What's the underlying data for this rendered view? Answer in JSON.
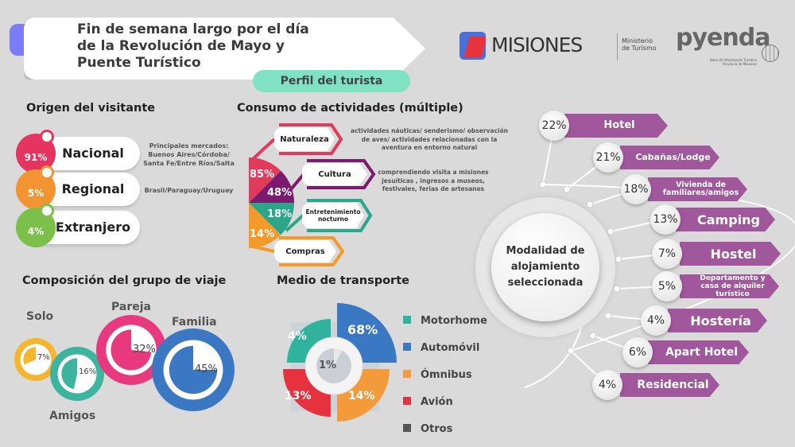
{
  "header": {
    "title_lines": [
      "Fin de semana largo por el día",
      "de la Revolución de Mayo y",
      "Puente Turístico"
    ],
    "subtitle": "Perfil del turista"
  },
  "logos": {
    "misiones": "MISIONES",
    "ministerio": "Ministerio de Turismo",
    "pyenda": "pyenda",
    "pyenda_sub": "Base de Información Turística Provincia de Misiones"
  },
  "origen": {
    "title": "Origen del visitante",
    "items": [
      {
        "pct": "91%",
        "label": "Nacional",
        "note": "Principales mercados: Buenos Aires/Córdoba/ Santa Fe/Entre Ríos/Salta",
        "color": "#e5345f"
      },
      {
        "pct": "5%",
        "label": "Regional",
        "note": "Brasil/Paraguay/Uruguay",
        "color": "#f39433"
      },
      {
        "pct": "4%",
        "label": "Extranjero",
        "note": "",
        "color": "#7cbf4a"
      }
    ]
  },
  "consumo": {
    "title": "Consumo de actividades (múltiple)",
    "items": [
      {
        "pct": "85%",
        "label": "Naturaleza",
        "color": "#e23a5a",
        "desc": "actividades náuticas/ senderismo/ observación de aves/ actividades relacionadas con la aventura en entorno natural"
      },
      {
        "pct": "48%",
        "label": "Cultura",
        "color": "#7b1a6e",
        "desc": "comprendiendo visita a misiones jesuíticas , ingresos a museos, festivales, ferias de artesanos"
      },
      {
        "pct": "18%",
        "label": "Entretenimiento nocturno",
        "color": "#2aa68a",
        "desc": ""
      },
      {
        "pct": "14%",
        "label": "Compras",
        "color": "#f39a2a",
        "desc": ""
      }
    ]
  },
  "alojamiento": {
    "center": "Modalidad de alojamiento seleccionada",
    "items": [
      {
        "pct": "22%",
        "label": "Hotel",
        "value": 22
      },
      {
        "pct": "21%",
        "label": "Cabañas/Lodge",
        "value": 21
      },
      {
        "pct": "18%",
        "label": "Vivienda de familiares/amigos",
        "value": 18
      },
      {
        "pct": "13%",
        "label": "Camping",
        "value": 13
      },
      {
        "pct": "7%",
        "label": "Hostel",
        "value": 7
      },
      {
        "pct": "5%",
        "label": "Departamento y casa de alquiler turístico",
        "value": 5
      },
      {
        "pct": "4%",
        "label": "Hostería",
        "value": 4
      },
      {
        "pct": "6%",
        "label": "Apart Hotel",
        "value": 6
      },
      {
        "pct": "4%",
        "label": "Residencial",
        "value": 4
      }
    ]
  },
  "grupo": {
    "title": "Composición del grupo de viaje",
    "items": [
      {
        "label": "Solo",
        "pct": "7%",
        "value": 7,
        "color": "#f6b52e"
      },
      {
        "label": "Amigos",
        "pct": "16%",
        "value": 16,
        "color": "#3db4a0"
      },
      {
        "label": "Pareja",
        "pct": "32%",
        "value": 32,
        "color": "#e8397f"
      },
      {
        "label": "Familia",
        "pct": "45%",
        "value": 45,
        "color": "#3a78c4"
      }
    ]
  },
  "transporte": {
    "title": "Medio de transporte",
    "items": [
      {
        "label": "Motorhome",
        "pct": "4%",
        "value": 4,
        "color": "#2fb39d"
      },
      {
        "label": "Automóvil",
        "pct": "68%",
        "value": 68,
        "color": "#3b78c4"
      },
      {
        "label": "Ómnibus",
        "pct": "14%",
        "value": 14,
        "color": "#f39a3a"
      },
      {
        "label": "Avión",
        "pct": "13%",
        "value": 13,
        "color": "#e6323e"
      },
      {
        "label": "Otros",
        "pct": "1%",
        "value": 1,
        "color": "#555555"
      }
    ]
  }
}
